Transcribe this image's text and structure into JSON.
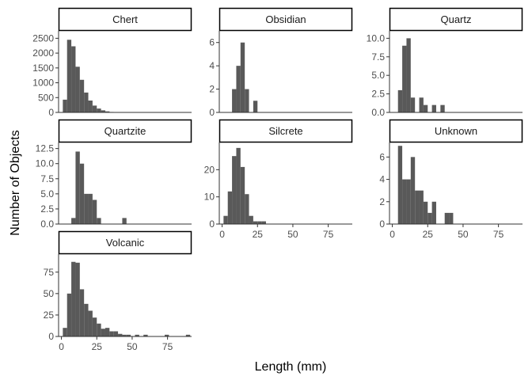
{
  "chart_data": {
    "type": "bar",
    "xlabel": "Length (mm)",
    "ylabel": "Number of Objects",
    "xlim": [
      -2,
      92
    ],
    "x_ticks": [
      0,
      25,
      50,
      75
    ],
    "bin_width": 3,
    "bin_starts": [
      1,
      4,
      7,
      10,
      13,
      16,
      19,
      22,
      25,
      28,
      31,
      34,
      37,
      40,
      43,
      46,
      49,
      52,
      55,
      58,
      61,
      64,
      67,
      70,
      73,
      76,
      79,
      82,
      85,
      88
    ],
    "bar_color": "#595959",
    "grid": false,
    "panels": [
      {
        "name": "Chert",
        "ylim": [
          0,
          2750
        ],
        "y_ticks": [
          "0",
          "500",
          "1000",
          "1500",
          "2000",
          "2500"
        ],
        "y_tick_values": [
          0,
          500,
          1000,
          1500,
          2000,
          2500
        ],
        "values": [
          430,
          2450,
          2230,
          1540,
          1100,
          670,
          400,
          230,
          130,
          70,
          35,
          15,
          8,
          4,
          2,
          0,
          0,
          0,
          0,
          0,
          0,
          0,
          0,
          0,
          0,
          0,
          0,
          0,
          0,
          0
        ],
        "show_x_ticks": false
      },
      {
        "name": "Obsidian",
        "ylim": [
          0,
          7
        ],
        "y_ticks": [
          "0",
          "2",
          "4",
          "6"
        ],
        "y_tick_values": [
          0,
          2,
          4,
          6
        ],
        "values": [
          0,
          0,
          2,
          4,
          6,
          2,
          0,
          1,
          0,
          0,
          0,
          0,
          0,
          0,
          0,
          0,
          0,
          0,
          0,
          0,
          0,
          0,
          0,
          0,
          0,
          0,
          0,
          0,
          0,
          0
        ],
        "show_x_ticks": false
      },
      {
        "name": "Quartz",
        "ylim": [
          0,
          11
        ],
        "y_ticks": [
          "0.0",
          "2.5",
          "5.0",
          "7.5",
          "10.0"
        ],
        "y_tick_values": [
          0,
          2.5,
          5,
          7.5,
          10
        ],
        "values": [
          0,
          3,
          9,
          10,
          2,
          0,
          2,
          1,
          0,
          1,
          0,
          1,
          0,
          0,
          0,
          0,
          0,
          0,
          0,
          0,
          0,
          0,
          0,
          0,
          0,
          0,
          0,
          0,
          0,
          0
        ],
        "show_x_ticks": false
      },
      {
        "name": "Quartzite",
        "ylim": [
          0,
          13.5
        ],
        "y_ticks": [
          "0.0",
          "2.5",
          "5.0",
          "7.5",
          "10.0",
          "12.5"
        ],
        "y_tick_values": [
          0,
          2.5,
          5,
          7.5,
          10,
          12.5
        ],
        "values": [
          0,
          0,
          1,
          12,
          10,
          5,
          5,
          4,
          1,
          0,
          0,
          0,
          0,
          0,
          1,
          0,
          0,
          0,
          0,
          0,
          0,
          0,
          0,
          0,
          0,
          0,
          0,
          0,
          0,
          0
        ],
        "show_x_ticks": false
      },
      {
        "name": "Silcrete",
        "ylim": [
          0,
          30
        ],
        "y_ticks": [
          "0",
          "10",
          "20"
        ],
        "y_tick_values": [
          0,
          10,
          20
        ],
        "values": [
          3,
          12,
          25,
          28,
          21,
          11,
          3,
          1,
          1,
          1,
          0,
          0,
          0,
          0,
          0,
          0,
          0,
          0,
          0,
          0,
          0,
          0,
          0,
          0,
          0,
          0,
          0,
          0,
          0,
          0
        ],
        "show_x_ticks": true
      },
      {
        "name": "Unknown",
        "ylim": [
          0,
          7.3
        ],
        "y_ticks": [
          "0",
          "2",
          "4",
          "6"
        ],
        "y_tick_values": [
          0,
          2,
          4,
          6
        ],
        "values": [
          0,
          7,
          4,
          4,
          6,
          3,
          3,
          2,
          1,
          2,
          0,
          0,
          1,
          1,
          0,
          0,
          0,
          0,
          0,
          0,
          0,
          0,
          0,
          0,
          0,
          0,
          0,
          0,
          0,
          0
        ],
        "show_x_ticks": true
      },
      {
        "name": "Volcanic",
        "ylim": [
          0,
          96
        ],
        "y_ticks": [
          "0",
          "25",
          "50",
          "75"
        ],
        "y_tick_values": [
          0,
          25,
          50,
          75
        ],
        "values": [
          10,
          50,
          87,
          86,
          55,
          38,
          30,
          22,
          15,
          9,
          10,
          6,
          6,
          3,
          2,
          2,
          0,
          2,
          0,
          2,
          0,
          0,
          0,
          0,
          2,
          0,
          0,
          0,
          0,
          2
        ],
        "show_x_ticks": true
      }
    ]
  },
  "colors": {
    "bar": "#595959",
    "strip_border": "#000000",
    "axis": "#333333",
    "tick_text": "#4d4d4d",
    "title_text": "#000000"
  }
}
